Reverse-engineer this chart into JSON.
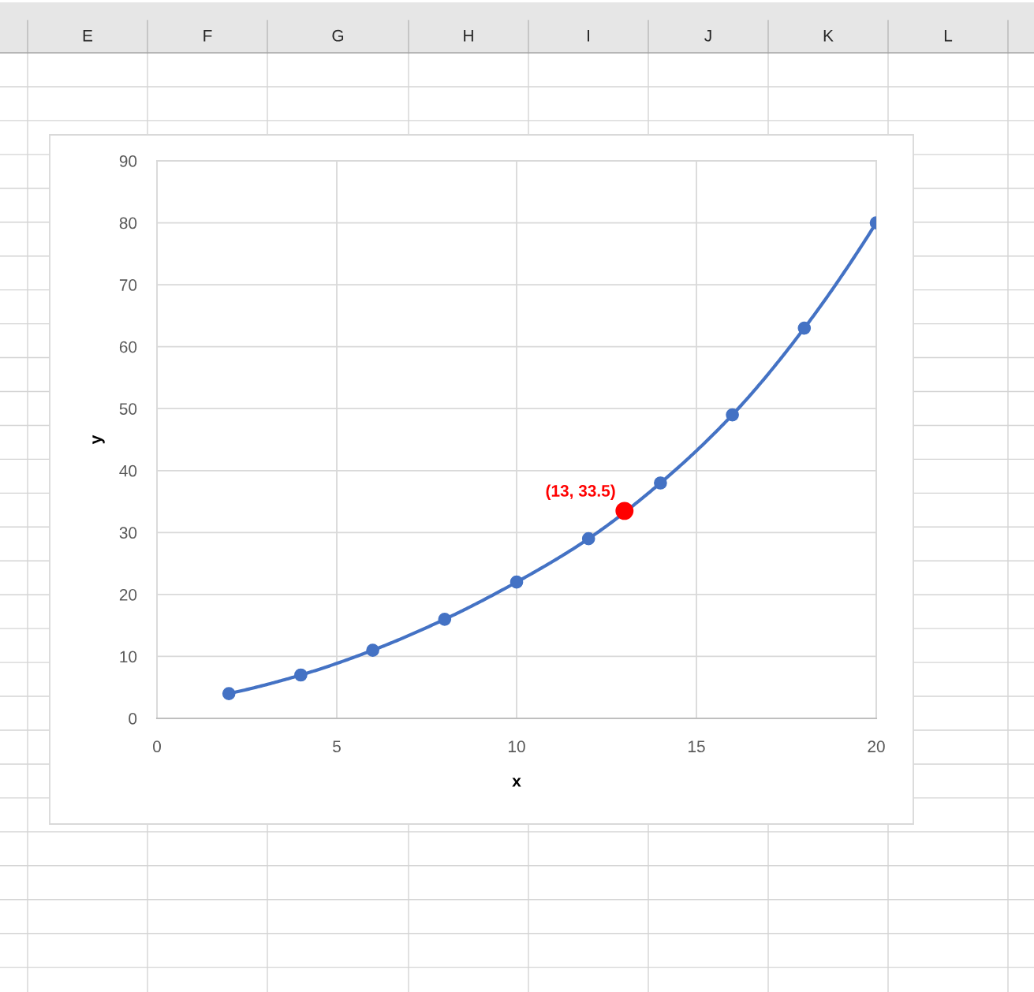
{
  "chart_data": {
    "type": "line",
    "xlabel": "x",
    "ylabel": "y",
    "x": [
      2,
      4,
      6,
      8,
      10,
      12,
      14,
      16,
      18,
      20
    ],
    "series": [
      {
        "color": "#4472c4",
        "values": [
          4,
          7,
          11,
          16,
          22,
          29,
          38,
          49,
          63,
          80
        ]
      },
      {
        "type": "scatter",
        "x": [
          13
        ],
        "values": [
          33.5
        ],
        "color": "#ff0000",
        "value_labels": [
          "(13, 33.5)"
        ]
      }
    ],
    "xlim": [
      0,
      20
    ],
    "xticks": [
      0,
      5,
      10,
      15,
      20
    ],
    "ylim": [
      0,
      90
    ],
    "yticks": [
      0,
      10,
      20,
      30,
      40,
      50,
      60,
      70,
      80,
      90
    ],
    "grid": true,
    "marker": "circle",
    "line_style": "solid",
    "annotations": [
      "E",
      "F",
      "G",
      "H",
      "I",
      "J",
      "K",
      "L"
    ]
  }
}
